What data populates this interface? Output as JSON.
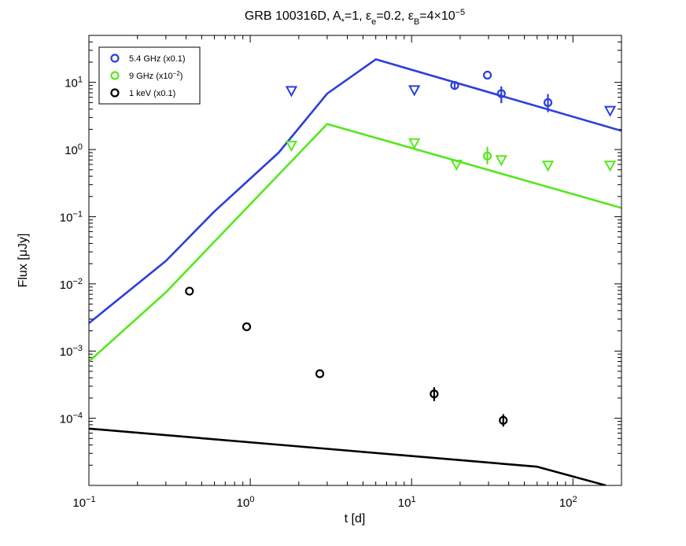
{
  "chart_data": {
    "type": "scatter",
    "title_parts": {
      "main": "GRB 100316D, A",
      "a_sub": "*",
      "after_a": "=1, ",
      "eps_e": "ε",
      "eps_e_sub": "e",
      "after_e": "=0.2, ",
      "eps_b": "ε",
      "eps_b_sub": "B",
      "after_b": "=4×10",
      "b_exp": "−5"
    },
    "xlabel": "t [d]",
    "ylabel": "Flux [μJy]",
    "x_scale": "log",
    "y_scale": "log",
    "xlim": [
      0.1,
      200
    ],
    "ylim": [
      1e-05,
      50
    ],
    "x_ticks": [
      {
        "value": 0.1,
        "base": "10",
        "exp": "−1"
      },
      {
        "value": 1,
        "base": "10",
        "exp": "0"
      },
      {
        "value": 10,
        "base": "10",
        "exp": "1"
      },
      {
        "value": 100,
        "base": "10",
        "exp": "2"
      }
    ],
    "y_ticks": [
      {
        "value": 0.0001,
        "base": "10",
        "exp": "−4"
      },
      {
        "value": 0.001,
        "base": "10",
        "exp": "−3"
      },
      {
        "value": 0.01,
        "base": "10",
        "exp": "−2"
      },
      {
        "value": 0.1,
        "base": "10",
        "exp": "−1"
      },
      {
        "value": 1,
        "base": "10",
        "exp": "0"
      },
      {
        "value": 10,
        "base": "10",
        "exp": "1"
      }
    ],
    "legend_position": "top-left",
    "series": [
      {
        "name": "5.4 GHz (x0.1)",
        "legend_main": "5.4 GHz (x0.1)",
        "legend_exp": "",
        "legend_after": "",
        "color": "#2b3fdc",
        "model_line": [
          [
            0.1,
            0.0026
          ],
          [
            0.3,
            0.022
          ],
          [
            0.6,
            0.12
          ],
          [
            1.5,
            0.9
          ],
          [
            3,
            6.8
          ],
          [
            6,
            22
          ],
          [
            200,
            1.9
          ]
        ],
        "detections": [
          {
            "x": 18.5,
            "y": 9.0,
            "err_lo": 7.7,
            "err_hi": 10.3
          },
          {
            "x": 29.5,
            "y": 12.8,
            "err_lo": 12.8,
            "err_hi": 12.8
          },
          {
            "x": 36,
            "y": 6.8,
            "err_lo": 4.9,
            "err_hi": 8.7
          },
          {
            "x": 70,
            "y": 5.0,
            "err_lo": 3.6,
            "err_hi": 6.7
          }
        ],
        "upper_limits": [
          {
            "x": 1.8,
            "y": 7.5
          },
          {
            "x": 10.4,
            "y": 7.7
          },
          {
            "x": 170,
            "y": 3.8
          }
        ]
      },
      {
        "name": "9 GHz (x10^-2)",
        "legend_main": "9 GHz (x10",
        "legend_exp": "−2",
        "legend_after": ")",
        "color": "#55e81c",
        "model_line": [
          [
            0.1,
            0.0007
          ],
          [
            0.3,
            0.0075
          ],
          [
            3,
            2.4
          ],
          [
            200,
            0.135
          ]
        ],
        "detections": [
          {
            "x": 29.5,
            "y": 0.8,
            "err_lo": 0.6,
            "err_hi": 1.1
          }
        ],
        "upper_limits": [
          {
            "x": 1.8,
            "y": 1.15
          },
          {
            "x": 10.4,
            "y": 1.25
          },
          {
            "x": 19,
            "y": 0.6
          },
          {
            "x": 36,
            "y": 0.7
          },
          {
            "x": 70,
            "y": 0.58
          },
          {
            "x": 170,
            "y": 0.58
          }
        ]
      },
      {
        "name": "1 keV (x0.1)",
        "legend_main": "1 keV (x0.1)",
        "legend_exp": "",
        "legend_after": "",
        "color": "#000000",
        "model_line": [
          [
            0.1,
            7e-05
          ],
          [
            3,
            3.5e-05
          ],
          [
            60,
            1.9e-05
          ],
          [
            160,
            1e-05
          ]
        ],
        "detections": [
          {
            "x": 0.42,
            "y": 0.0078,
            "err_lo": 0.0078,
            "err_hi": 0.0078
          },
          {
            "x": 0.95,
            "y": 0.0023,
            "err_lo": 0.0023,
            "err_hi": 0.0023
          },
          {
            "x": 2.7,
            "y": 0.00046,
            "err_lo": 0.00046,
            "err_hi": 0.00046
          },
          {
            "x": 13.8,
            "y": 0.00023,
            "err_lo": 0.00018,
            "err_hi": 0.00029
          },
          {
            "x": 37,
            "y": 9.3e-05,
            "err_lo": 7.5e-05,
            "err_hi": 0.000115
          }
        ],
        "upper_limits": []
      }
    ]
  }
}
